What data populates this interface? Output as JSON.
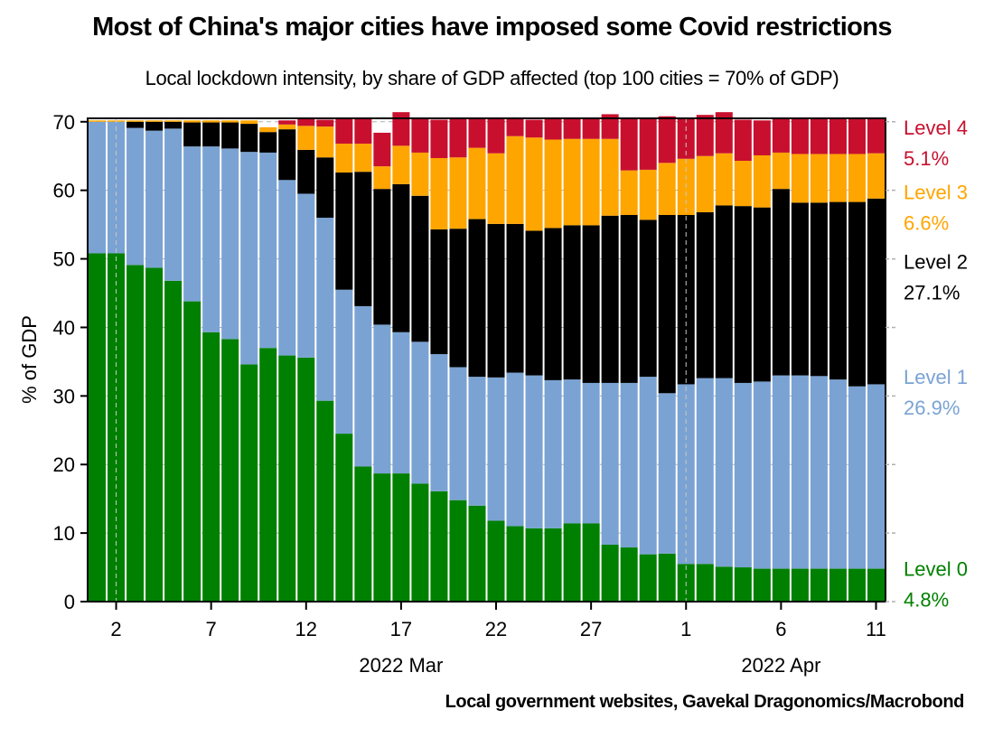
{
  "title": "Most of China's major cities have imposed some Covid restrictions",
  "subtitle": "Local lockdown intensity, by share of GDP affected (top 100 cities = 70% of GDP)",
  "source": "Local government websites, Gavekal Dragonomics/Macrobond",
  "colors": {
    "level0": "#008000",
    "level1": "#7aa3d3",
    "level2": "#000000",
    "level3": "#ffa500",
    "level4": "#c8102e",
    "grid": "#b0b0b0"
  },
  "chart_data": {
    "type": "bar",
    "stacked": true,
    "ylabel": "% of GDP",
    "ylim": [
      0,
      70.5
    ],
    "yticks": [
      0,
      10,
      20,
      30,
      40,
      50,
      60,
      70
    ],
    "xtick_labels": [
      "2",
      "7",
      "12",
      "17",
      "22",
      "27",
      "1",
      "6",
      "11"
    ],
    "xtick_indices": [
      1,
      6,
      11,
      16,
      21,
      26,
      31,
      36,
      41
    ],
    "month_labels": [
      {
        "label": "2022 Mar",
        "index": 16
      },
      {
        "label": "2022 Apr",
        "index": 36
      }
    ],
    "vertical_gridlines_at_indices": [
      1,
      31
    ],
    "categories": [
      "Mar 1",
      "Mar 2",
      "Mar 3",
      "Mar 4",
      "Mar 5",
      "Mar 6",
      "Mar 7",
      "Mar 8",
      "Mar 9",
      "Mar 10",
      "Mar 11",
      "Mar 12",
      "Mar 13",
      "Mar 14",
      "Mar 15",
      "Mar 16",
      "Mar 17",
      "Mar 18",
      "Mar 19",
      "Mar 20",
      "Mar 21",
      "Mar 22",
      "Mar 23",
      "Mar 24",
      "Mar 25",
      "Mar 26",
      "Mar 27",
      "Mar 28",
      "Mar 29",
      "Mar 30",
      "Mar 31",
      "Apr 1",
      "Apr 2",
      "Apr 3",
      "Apr 4",
      "Apr 5",
      "Apr 6",
      "Apr 7",
      "Apr 8",
      "Apr 9",
      "Apr 10",
      "Apr 11"
    ],
    "series": [
      {
        "name": "Level 0",
        "end_label": "4.8%",
        "color_key": "level0",
        "values": [
          50.8,
          50.8,
          49.1,
          48.7,
          46.8,
          43.8,
          39.3,
          38.3,
          34.6,
          37.0,
          35.9,
          35.6,
          29.3,
          24.5,
          19.7,
          18.7,
          18.7,
          17.2,
          16.1,
          14.8,
          14.0,
          11.8,
          11.0,
          10.7,
          10.7,
          11.4,
          11.4,
          8.3,
          7.9,
          6.9,
          7.0,
          5.5,
          5.5,
          5.1,
          5.0,
          4.8,
          4.8,
          4.8,
          4.8,
          4.8,
          4.8,
          4.8
        ]
      },
      {
        "name": "Level 1",
        "end_label": "26.9%",
        "color_key": "level1",
        "values": [
          19.2,
          19.2,
          20.0,
          20.0,
          22.2,
          22.6,
          27.1,
          27.8,
          31.0,
          28.5,
          25.6,
          23.9,
          26.7,
          21.0,
          23.4,
          21.7,
          20.6,
          20.7,
          20.0,
          19.4,
          18.8,
          20.9,
          22.4,
          22.3,
          21.6,
          21.0,
          20.5,
          23.6,
          24.0,
          25.9,
          23.4,
          26.2,
          27.1,
          27.5,
          26.9,
          27.3,
          28.2,
          28.2,
          28.1,
          27.6,
          26.6,
          26.9
        ]
      },
      {
        "name": "Level 2",
        "end_label": "27.1%",
        "color_key": "level2",
        "values": [
          0.0,
          0.0,
          0.9,
          1.3,
          1.0,
          3.5,
          3.5,
          3.8,
          4.1,
          3.0,
          7.4,
          6.4,
          8.8,
          17.1,
          19.6,
          19.8,
          21.6,
          21.3,
          18.2,
          20.2,
          23.0,
          22.4,
          21.7,
          21.1,
          22.2,
          22.5,
          23.0,
          24.4,
          24.5,
          22.9,
          26.0,
          24.7,
          24.2,
          25.2,
          25.8,
          25.4,
          27.2,
          25.2,
          25.3,
          25.9,
          26.9,
          27.1
        ]
      },
      {
        "name": "Level 3",
        "end_label": "6.6%",
        "color_key": "level3",
        "values": [
          0.2,
          0.2,
          0.2,
          0.2,
          0.2,
          0.3,
          0.3,
          0.3,
          0.5,
          0.7,
          0.7,
          3.5,
          4.5,
          4.2,
          4.1,
          3.3,
          5.6,
          6.3,
          10.4,
          10.4,
          10.4,
          10.3,
          12.8,
          13.6,
          12.9,
          12.6,
          12.6,
          11.2,
          6.5,
          7.3,
          7.6,
          8.2,
          8.2,
          7.6,
          6.6,
          7.6,
          5.3,
          7.1,
          7.1,
          7.0,
          7.0,
          6.6
        ]
      },
      {
        "name": "Level 4",
        "end_label": "5.1%",
        "color_key": "level4",
        "values": [
          0.0,
          0.0,
          0.0,
          0.0,
          0.0,
          0.0,
          0.0,
          0.0,
          0.0,
          0.0,
          0.6,
          1.0,
          1.0,
          3.7,
          3.7,
          4.9,
          4.9,
          4.9,
          5.6,
          5.7,
          4.3,
          5.1,
          2.6,
          2.6,
          3.1,
          3.1,
          3.1,
          3.6,
          7.6,
          7.5,
          6.8,
          6.0,
          6.0,
          6.0,
          6.0,
          5.1,
          5.1,
          5.1,
          5.1,
          5.1,
          5.1,
          5.1
        ]
      }
    ]
  }
}
